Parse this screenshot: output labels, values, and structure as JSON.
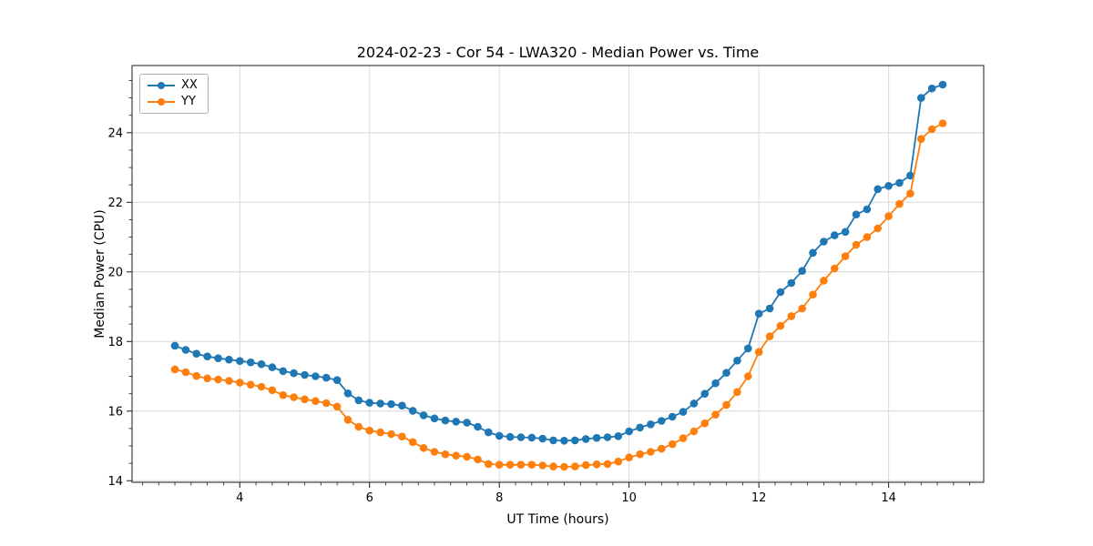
{
  "figure": {
    "background": "#ffffff"
  },
  "chart_data": {
    "type": "line",
    "title": "2024-02-23 - Cor 54 - LWA320 - Median Power vs. Time",
    "xlabel": "UT Time (hours)",
    "ylabel": "Median Power (CPU)",
    "xlim": [
      2.34,
      15.465
    ],
    "ylim": [
      13.955,
      25.93
    ],
    "x_ticks": [
      4,
      6,
      8,
      10,
      12,
      14
    ],
    "y_ticks": [
      14,
      16,
      18,
      20,
      22,
      24
    ],
    "x_minor_step": 0.25,
    "y_minor_step": 0.5,
    "grid": true,
    "legend_position": "upper-left",
    "marker": "circle",
    "x": [
      3.0,
      3.167,
      3.333,
      3.5,
      3.667,
      3.833,
      4.0,
      4.167,
      4.333,
      4.5,
      4.667,
      4.833,
      5.0,
      5.167,
      5.333,
      5.5,
      5.667,
      5.833,
      6.0,
      6.167,
      6.333,
      6.5,
      6.667,
      6.833,
      7.0,
      7.167,
      7.333,
      7.5,
      7.667,
      7.833,
      8.0,
      8.167,
      8.333,
      8.5,
      8.667,
      8.833,
      9.0,
      9.167,
      9.333,
      9.5,
      9.667,
      9.833,
      10.0,
      10.167,
      10.333,
      10.5,
      10.667,
      10.833,
      11.0,
      11.167,
      11.333,
      11.5,
      11.667,
      11.833,
      12.0,
      12.167,
      12.333,
      12.5,
      12.667,
      12.833,
      13.0,
      13.167,
      13.333,
      13.5,
      13.667,
      13.833,
      14.0,
      14.167,
      14.333,
      14.5,
      14.667,
      14.833
    ],
    "series": [
      {
        "name": "XX",
        "color": "#1f77b4",
        "values": [
          17.88,
          17.76,
          17.65,
          17.57,
          17.52,
          17.48,
          17.44,
          17.4,
          17.35,
          17.26,
          17.15,
          17.09,
          17.04,
          17.0,
          16.96,
          16.89,
          16.51,
          16.31,
          16.24,
          16.22,
          16.2,
          16.16,
          16.01,
          15.88,
          15.79,
          15.73,
          15.7,
          15.67,
          15.55,
          15.39,
          15.29,
          15.26,
          15.25,
          15.24,
          15.21,
          15.16,
          15.15,
          15.16,
          15.2,
          15.23,
          15.25,
          15.28,
          15.42,
          15.53,
          15.62,
          15.72,
          15.84,
          15.98,
          16.22,
          16.5,
          16.8,
          17.1,
          17.45,
          17.8,
          18.8,
          18.95,
          19.42,
          19.68,
          20.03,
          20.55,
          20.87,
          21.05,
          21.15,
          21.65,
          21.8,
          22.38,
          22.47,
          22.56,
          22.77,
          25.0,
          25.27,
          25.38
        ]
      },
      {
        "name": "YY",
        "color": "#ff7f0e",
        "values": [
          17.2,
          17.12,
          17.01,
          16.94,
          16.91,
          16.87,
          16.82,
          16.76,
          16.7,
          16.6,
          16.46,
          16.4,
          16.34,
          16.29,
          16.23,
          16.13,
          15.75,
          15.55,
          15.44,
          15.39,
          15.34,
          15.27,
          15.11,
          14.94,
          14.83,
          14.76,
          14.72,
          14.69,
          14.61,
          14.48,
          14.46,
          14.46,
          14.46,
          14.46,
          14.44,
          14.41,
          14.4,
          14.41,
          14.45,
          14.47,
          14.48,
          14.55,
          14.67,
          14.76,
          14.83,
          14.92,
          15.05,
          15.22,
          15.42,
          15.65,
          15.9,
          16.18,
          16.55,
          17.0,
          17.7,
          18.15,
          18.45,
          18.73,
          18.95,
          19.35,
          19.75,
          20.1,
          20.45,
          20.78,
          21.0,
          21.25,
          21.6,
          21.95,
          22.25,
          23.82,
          24.1,
          24.27
        ]
      }
    ]
  },
  "legend": {
    "items": [
      {
        "label": "XX",
        "color": "#1f77b4"
      },
      {
        "label": "YY",
        "color": "#ff7f0e"
      }
    ]
  },
  "colors": {
    "grid": "#d8d8d8",
    "spine": "#1a1a1a",
    "tick": "#1a1a1a",
    "text": "#000000"
  }
}
